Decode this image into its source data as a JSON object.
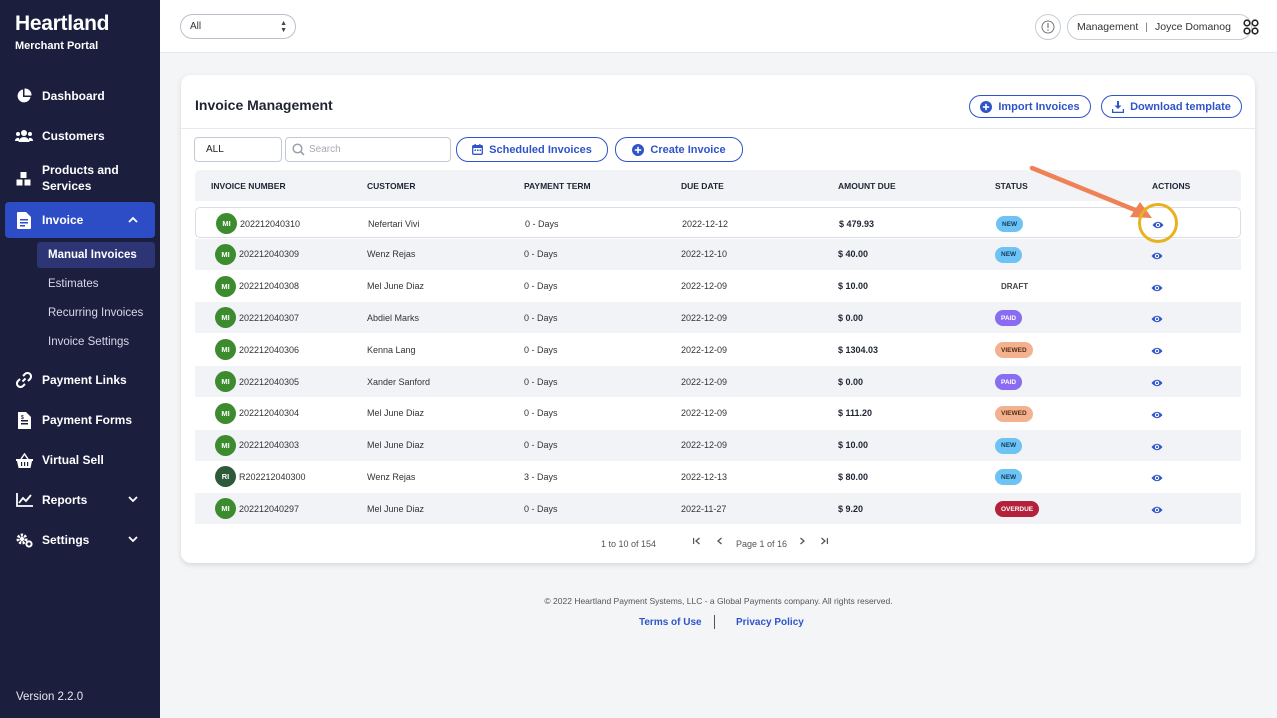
{
  "brand": {
    "name": "Heartland",
    "subtitle": "Merchant Portal"
  },
  "sidebar": {
    "items": [
      {
        "label": "Dashboard",
        "icon": "pie-chart-icon"
      },
      {
        "label": "Customers",
        "icon": "users-icon"
      },
      {
        "label": "Products and Services",
        "icon": "boxes-icon"
      },
      {
        "label": "Invoice",
        "icon": "invoice-icon",
        "active": true
      },
      {
        "label": "Payment Links",
        "icon": "link-icon"
      },
      {
        "label": "Payment Forms",
        "icon": "form-icon"
      },
      {
        "label": "Virtual Sell",
        "icon": "basket-icon"
      },
      {
        "label": "Reports",
        "icon": "chart-line-icon"
      },
      {
        "label": "Settings",
        "icon": "gear-icon"
      }
    ],
    "sub_items": [
      "Manual Invoices",
      "Estimates",
      "Recurring Invoices",
      "Invoice Settings"
    ],
    "version": "Version 2.2.0"
  },
  "topbar": {
    "merchant_select": "All",
    "role": "Management",
    "separator": "|",
    "user": "Joyce Domanog"
  },
  "page": {
    "title": "Invoice Management",
    "import_label": "Import Invoices",
    "download_label": "Download template",
    "filter_value": "ALL",
    "search_placeholder": "Search",
    "scheduled_label": "Scheduled Invoices",
    "create_label": "Create Invoice"
  },
  "table": {
    "headers": [
      "INVOICE NUMBER",
      "CUSTOMER",
      "PAYMENT TERM",
      "DUE DATE",
      "AMOUNT DUE",
      "STATUS",
      "ACTIONS"
    ],
    "rows": [
      {
        "avatar": "MI",
        "number": "202212040310",
        "customer": "Nefertari Vivi",
        "term": "0 - Days",
        "due": "2022-12-12",
        "amount": "$ 479.93",
        "status": "NEW"
      },
      {
        "avatar": "MI",
        "number": "202212040309",
        "customer": "Wenz Rejas",
        "term": "0 - Days",
        "due": "2022-12-10",
        "amount": "$ 40.00",
        "status": "NEW"
      },
      {
        "avatar": "MI",
        "number": "202212040308",
        "customer": "Mel June Diaz",
        "term": "0 - Days",
        "due": "2022-12-09",
        "amount": "$ 10.00",
        "status": "DRAFT"
      },
      {
        "avatar": "MI",
        "number": "202212040307",
        "customer": "Abdiel Marks",
        "term": "0 - Days",
        "due": "2022-12-09",
        "amount": "$ 0.00",
        "status": "PAID"
      },
      {
        "avatar": "MI",
        "number": "202212040306",
        "customer": "Kenna Lang",
        "term": "0 - Days",
        "due": "2022-12-09",
        "amount": "$ 1304.03",
        "status": "VIEWED"
      },
      {
        "avatar": "MI",
        "number": "202212040305",
        "customer": "Xander Sanford",
        "term": "0 - Days",
        "due": "2022-12-09",
        "amount": "$ 0.00",
        "status": "PAID"
      },
      {
        "avatar": "MI",
        "number": "202212040304",
        "customer": "Mel June Diaz",
        "term": "0 - Days",
        "due": "2022-12-09",
        "amount": "$ 111.20",
        "status": "VIEWED"
      },
      {
        "avatar": "MI",
        "number": "202212040303",
        "customer": "Mel June Diaz",
        "term": "0 - Days",
        "due": "2022-12-09",
        "amount": "$ 10.00",
        "status": "NEW"
      },
      {
        "avatar": "RI",
        "number": "R202212040300",
        "customer": "Wenz Rejas",
        "term": "3 - Days",
        "due": "2022-12-13",
        "amount": "$ 80.00",
        "status": "NEW"
      },
      {
        "avatar": "MI",
        "number": "202212040297",
        "customer": "Mel June Diaz",
        "term": "0 - Days",
        "due": "2022-11-27",
        "amount": "$ 9.20",
        "status": "OVERDUE"
      }
    ]
  },
  "status_colors": {
    "NEW": {
      "bg": "#6ec3f5",
      "fg": "#123a5c"
    },
    "DRAFT": {
      "bg": "transparent",
      "fg": "#444444"
    },
    "PAID": {
      "bg": "#8a6cf0",
      "fg": "#ffffff"
    },
    "VIEWED": {
      "bg": "#f2b28f",
      "fg": "#5a2a12"
    },
    "OVERDUE": {
      "bg": "#b3223a",
      "fg": "#ffffff"
    }
  },
  "pagination": {
    "range": "1 to 10 of 154",
    "page_text": "Page 1 of 16"
  },
  "footer": {
    "copyright": "© 2022 Heartland Payment Systems, LLC - a Global Payments company. All rights reserved.",
    "terms": "Terms of Use",
    "privacy": "Privacy Policy"
  },
  "colors": {
    "sidebar": "#1b1e3d",
    "accent": "#2f54c9",
    "active_nav": "#2d4dc7",
    "annotation_ring": "#e8b21f",
    "annotation_arrow": "#ee8256"
  }
}
